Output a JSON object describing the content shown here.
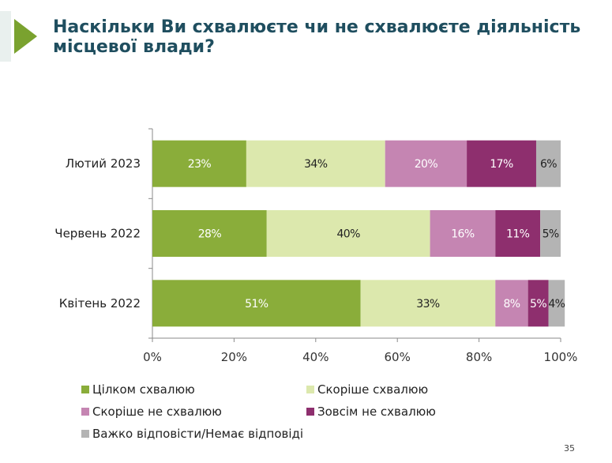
{
  "title": "Наскільки Ви схвалюєте чи не схвалюєте діяльність місцевої влади?",
  "page_number": "35",
  "colors": {
    "title": "#1f4e5f",
    "accent_triangle": "#7aa22f",
    "icon_background": "#e9f0ee"
  },
  "chart_data": {
    "type": "bar",
    "orientation": "horizontal",
    "stacked": true,
    "categories": [
      "Лютий 2023",
      "Червень 2022",
      "Квітень 2022"
    ],
    "series": [
      {
        "name": "Цілком схвалюю",
        "color": "#8aad3a",
        "label_color": "#ffffff",
        "values": [
          23,
          28,
          51
        ],
        "labels": [
          "23%",
          "28%",
          "51%"
        ]
      },
      {
        "name": "Скоріше схвалюю",
        "color": "#dce8ad",
        "label_color": "#222222",
        "values": [
          34,
          40,
          33
        ],
        "labels": [
          "34%",
          "40%",
          "33%"
        ]
      },
      {
        "name": "Скоріше не схвалюю",
        "color": "#c585b2",
        "label_color": "#ffffff",
        "values": [
          20,
          16,
          8
        ],
        "labels": [
          "20%",
          "16%",
          "8%"
        ]
      },
      {
        "name": "Зовсім не схвалюю",
        "color": "#8e2f6e",
        "label_color": "#ffffff",
        "values": [
          17,
          11,
          5
        ],
        "labels": [
          "17%",
          "11%",
          "5%"
        ]
      },
      {
        "name": "Важко відповісти/Немає відповіді",
        "color": "#b4b4b4",
        "label_color": "#222222",
        "values": [
          6,
          5,
          4
        ],
        "labels": [
          "6%",
          "5%",
          "4%"
        ]
      }
    ],
    "x_ticks": [
      "0%",
      "20%",
      "40%",
      "60%",
      "80%",
      "100%"
    ],
    "xlim": [
      0,
      100
    ],
    "grid": false,
    "legend_position": "bottom"
  }
}
